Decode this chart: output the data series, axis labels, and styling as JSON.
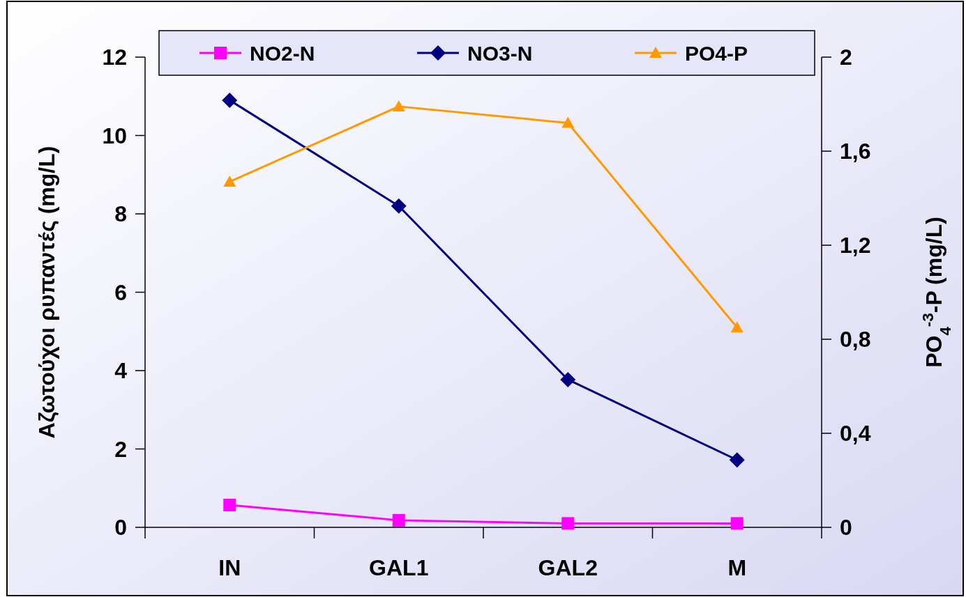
{
  "chart_data": {
    "type": "line",
    "categories": [
      "IN",
      "GAL1",
      "GAL2",
      "M"
    ],
    "ylabel": "Αζωτούχοι ρυπαντές (mg/L)",
    "y2label": "PO$_{4}$$^{-3}$-P  (mg/L)",
    "ylim": [
      0,
      12
    ],
    "yticks": [
      0,
      2,
      4,
      6,
      8,
      10,
      12
    ],
    "y2lim": [
      0,
      2
    ],
    "y2ticks": [
      0,
      {
        "value": 0.4,
        "label": "0,4"
      },
      {
        "value": 0.8,
        "label": "0,8"
      },
      {
        "value": 1.2,
        "label": "1,2"
      },
      {
        "value": 1.6,
        "label": "1,6"
      },
      2
    ],
    "grid": false,
    "legend": "top",
    "series": [
      {
        "name": "NO2-N",
        "color": "#ff00ff",
        "marker": "square",
        "values": [
          0.57,
          0.18,
          0.1,
          0.1
        ]
      },
      {
        "name": "NO3-N",
        "color": "#000080",
        "marker": "diamond",
        "values": [
          10.9,
          8.2,
          3.77,
          1.72
        ]
      },
      {
        "name": "PO4-P",
        "color": "#ff9900",
        "marker": "triangle",
        "axis": "y2",
        "values": [
          1.47,
          1.79,
          1.72,
          0.85
        ]
      }
    ]
  }
}
